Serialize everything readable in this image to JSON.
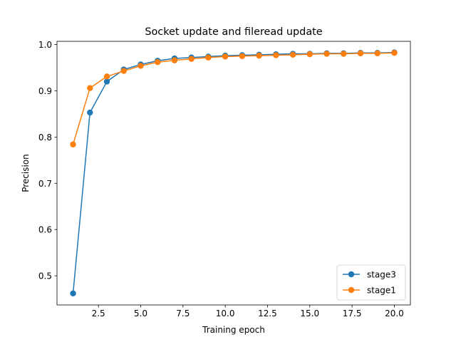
{
  "chart_data": {
    "type": "line",
    "title": "Socket update and fileread update",
    "xlabel": "Training epoch",
    "ylabel": "Precision",
    "xlim": [
      0.05,
      20.95
    ],
    "ylim": [
      0.437,
      1.007
    ],
    "xticks": [
      2.5,
      5.0,
      7.5,
      10.0,
      12.5,
      15.0,
      17.5,
      20.0
    ],
    "xtick_labels": [
      "2.5",
      "5.0",
      "7.5",
      "10.0",
      "12.5",
      "15.0",
      "17.5",
      "20.0"
    ],
    "yticks": [
      0.5,
      0.6,
      0.7,
      0.8,
      0.9,
      1.0
    ],
    "ytick_labels": [
      "0.5",
      "0.6",
      "0.7",
      "0.8",
      "0.9",
      "1.0"
    ],
    "grid": false,
    "legend_position": "lower-right",
    "marker": "circle",
    "x": [
      1,
      2,
      3,
      4,
      5,
      6,
      7,
      8,
      9,
      10,
      11,
      12,
      13,
      14,
      15,
      16,
      17,
      18,
      19,
      20
    ],
    "series": [
      {
        "name": "stage3",
        "color": "#1f77b4",
        "values": [
          0.462,
          0.853,
          0.92,
          0.946,
          0.957,
          0.965,
          0.97,
          0.972,
          0.974,
          0.976,
          0.977,
          0.978,
          0.979,
          0.98,
          0.98,
          0.981,
          0.981,
          0.982,
          0.982,
          0.983
        ]
      },
      {
        "name": "stage1",
        "color": "#ff7f0e",
        "values": [
          0.784,
          0.906,
          0.931,
          0.943,
          0.954,
          0.962,
          0.966,
          0.969,
          0.972,
          0.974,
          0.975,
          0.976,
          0.977,
          0.978,
          0.979,
          0.98,
          0.98,
          0.981,
          0.981,
          0.982
        ]
      }
    ]
  }
}
